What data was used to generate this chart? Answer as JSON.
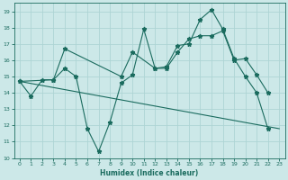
{
  "xlabel": "Humidex (Indice chaleur)",
  "bg_color": "#cce8e8",
  "grid_color": "#aed4d4",
  "line_color": "#1a6b5e",
  "xlim": [
    -0.5,
    23.5
  ],
  "ylim": [
    10,
    19.5
  ],
  "xticks": [
    0,
    1,
    2,
    3,
    4,
    5,
    6,
    7,
    8,
    9,
    10,
    11,
    12,
    13,
    14,
    15,
    16,
    17,
    18,
    19,
    20,
    21,
    22,
    23
  ],
  "yticks": [
    10,
    11,
    12,
    13,
    14,
    15,
    16,
    17,
    18,
    19
  ],
  "line1_x": [
    0,
    1,
    2,
    3,
    4,
    5,
    6,
    7,
    8,
    9,
    10,
    11,
    12,
    13,
    14,
    15,
    16,
    17,
    18,
    19,
    20,
    21,
    22
  ],
  "line1_y": [
    14.7,
    13.8,
    14.8,
    14.8,
    15.5,
    15.0,
    11.8,
    10.4,
    12.2,
    14.6,
    15.1,
    17.9,
    15.5,
    15.6,
    16.9,
    17.0,
    18.5,
    19.1,
    17.9,
    16.1,
    15.0,
    14.0,
    11.8
  ],
  "line2_x": [
    0,
    3,
    4,
    9,
    10,
    12,
    13,
    14,
    15,
    16,
    17,
    18,
    19,
    20,
    21,
    22
  ],
  "line2_y": [
    14.7,
    14.8,
    16.7,
    15.0,
    16.5,
    15.5,
    15.5,
    16.5,
    17.3,
    17.5,
    17.5,
    17.8,
    16.0,
    16.1,
    15.1,
    14.0
  ],
  "line3_x": [
    0,
    23
  ],
  "line3_y": [
    14.7,
    11.8
  ]
}
